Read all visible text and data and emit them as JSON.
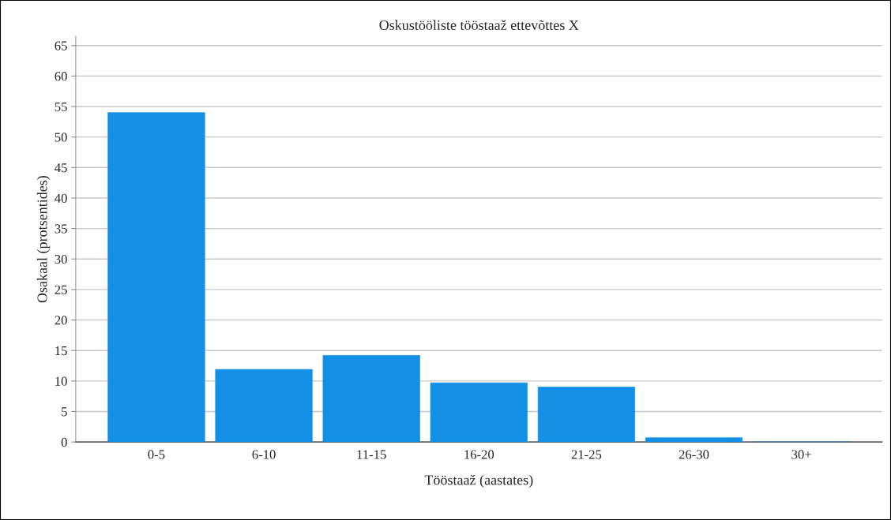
{
  "chart_data": {
    "type": "bar",
    "title": "Oskustööliste tööstaaž ettevõttes X",
    "xlabel": "Tööstaaž (aastates)",
    "ylabel": "Osakaal (protsentides)",
    "categories": [
      "0-5",
      "6-10",
      "11-15",
      "16-20",
      "21-25",
      "26-30",
      "30+"
    ],
    "values": [
      54.0,
      11.9,
      14.2,
      9.7,
      9.0,
      0.7,
      0
    ],
    "color": "#1390e6",
    "ylim": [
      0,
      66.5
    ],
    "yticks": [
      0,
      5,
      10,
      15,
      20,
      25,
      30,
      35,
      40,
      45,
      50,
      55,
      60,
      65
    ],
    "grid": "y"
  }
}
